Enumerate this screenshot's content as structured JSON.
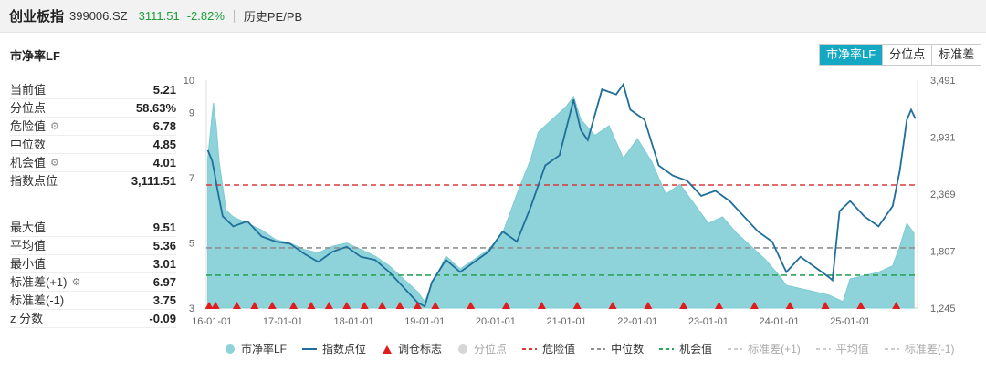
{
  "header": {
    "index_name": "创业板指",
    "index_code": "399006.SZ",
    "price": "3111.51",
    "change": "-2.82%",
    "history_link": "历史PE/PB"
  },
  "subtitle": "市净率LF",
  "tabs": [
    {
      "label": "市净率LF",
      "active": true
    },
    {
      "label": "分位点",
      "active": false
    },
    {
      "label": "标准差",
      "active": false
    }
  ],
  "stats_top": [
    {
      "label": "当前值",
      "value": "5.21",
      "gear": false
    },
    {
      "label": "分位点",
      "value": "58.63%",
      "gear": false
    },
    {
      "label": "危险值",
      "value": "6.78",
      "gear": true
    },
    {
      "label": "中位数",
      "value": "4.85",
      "gear": false
    },
    {
      "label": "机会值",
      "value": "4.01",
      "gear": true
    },
    {
      "label": "指数点位",
      "value": "3,111.51",
      "gear": false
    }
  ],
  "stats_bottom": [
    {
      "label": "最大值",
      "value": "9.51",
      "gear": false
    },
    {
      "label": "平均值",
      "value": "5.36",
      "gear": false
    },
    {
      "label": "最小值",
      "value": "3.01",
      "gear": false
    },
    {
      "label": "标准差(+1)",
      "value": "6.97",
      "gear": true
    },
    {
      "label": "标准差(-1)",
      "value": "3.75",
      "gear": false
    },
    {
      "label": "z 分数",
      "value": "-0.09",
      "gear": false
    }
  ],
  "colors": {
    "area": "#8fd3da",
    "index_line": "#1f6f9a",
    "danger": "#d93a3a",
    "median": "#909090",
    "opportunity": "#2ea35a",
    "marker": "#e01c1c",
    "accent": "#14a8c3",
    "price_down": "#1a9d3a"
  },
  "chart_data": {
    "type": "area",
    "x_ticks": [
      "16-01-01",
      "17-01-01",
      "18-01-01",
      "19-01-01",
      "20-01-01",
      "21-01-01",
      "22-01-01",
      "23-01-01",
      "24-01-01",
      "25-01-01"
    ],
    "y_left_ticks": [
      "10",
      "9",
      "7",
      "5",
      "3"
    ],
    "y_left_ticks_num": [
      10,
      9,
      7,
      5,
      3
    ],
    "y_left_range": [
      3,
      10
    ],
    "y_right_ticks": [
      "3,491",
      "2,931",
      "2,369",
      "1,807",
      "1,245"
    ],
    "y_right_ticks_num": [
      3491,
      2931,
      2369,
      1807,
      1245
    ],
    "y_right_range": [
      1245,
      3491
    ],
    "reference_lines": {
      "danger": 6.78,
      "median": 4.85,
      "opportunity": 4.01
    },
    "pb_series": {
      "name": "市净率LF",
      "t": [
        2015.94,
        2016.0,
        2016.02,
        2016.06,
        2016.1,
        2016.2,
        2016.3,
        2016.5,
        2016.7,
        2016.9,
        2017.1,
        2017.3,
        2017.5,
        2017.7,
        2017.9,
        2018.1,
        2018.3,
        2018.5,
        2018.7,
        2018.9,
        2019.0,
        2019.1,
        2019.3,
        2019.5,
        2019.7,
        2019.9,
        2020.1,
        2020.3,
        2020.5,
        2020.6,
        2020.8,
        2021.0,
        2021.1,
        2021.2,
        2021.4,
        2021.6,
        2021.8,
        2022.0,
        2022.2,
        2022.4,
        2022.6,
        2022.8,
        2023.0,
        2023.2,
        2023.4,
        2023.6,
        2023.8,
        2024.0,
        2024.1,
        2024.3,
        2024.5,
        2024.7,
        2024.9,
        2025.0,
        2025.2,
        2025.4,
        2025.6,
        2025.7,
        2025.8,
        2025.9
      ],
      "values": [
        7.6,
        8.9,
        9.3,
        8.6,
        7.5,
        6.0,
        5.8,
        5.6,
        5.4,
        5.1,
        5.0,
        4.8,
        4.7,
        4.9,
        5.0,
        4.8,
        4.6,
        4.3,
        3.9,
        3.5,
        3.2,
        3.7,
        4.6,
        4.2,
        4.5,
        4.8,
        5.3,
        6.5,
        7.6,
        8.4,
        8.8,
        9.2,
        9.5,
        8.8,
        8.3,
        8.6,
        7.6,
        8.2,
        7.5,
        6.5,
        6.8,
        6.2,
        5.6,
        5.8,
        5.3,
        4.9,
        4.5,
        4.0,
        3.7,
        3.6,
        3.5,
        3.4,
        3.2,
        3.9,
        4.0,
        4.1,
        4.3,
        4.9,
        5.6,
        5.3
      ]
    },
    "index_series": {
      "name": "指数点位",
      "t": [
        2015.94,
        2016.0,
        2016.03,
        2016.08,
        2016.15,
        2016.3,
        2016.5,
        2016.7,
        2016.9,
        2017.1,
        2017.3,
        2017.5,
        2017.7,
        2017.9,
        2018.1,
        2018.3,
        2018.5,
        2018.7,
        2018.9,
        2019.0,
        2019.1,
        2019.3,
        2019.5,
        2019.7,
        2019.9,
        2020.1,
        2020.3,
        2020.5,
        2020.7,
        2020.9,
        2021.1,
        2021.2,
        2021.3,
        2021.5,
        2021.7,
        2021.8,
        2021.9,
        2022.1,
        2022.3,
        2022.5,
        2022.7,
        2022.9,
        2023.1,
        2023.3,
        2023.5,
        2023.7,
        2023.9,
        2024.0,
        2024.1,
        2024.3,
        2024.5,
        2024.7,
        2024.75,
        2024.85,
        2025.0,
        2025.2,
        2025.4,
        2025.6,
        2025.7,
        2025.8,
        2025.86,
        2025.92
      ],
      "values": [
        2800,
        2700,
        2600,
        2400,
        2150,
        2050,
        2100,
        1950,
        1900,
        1880,
        1780,
        1700,
        1800,
        1850,
        1750,
        1720,
        1600,
        1450,
        1300,
        1260,
        1500,
        1720,
        1600,
        1700,
        1800,
        2000,
        1900,
        2250,
        2650,
        2750,
        3300,
        3000,
        2900,
        3400,
        3350,
        3450,
        3200,
        3100,
        2650,
        2550,
        2500,
        2350,
        2400,
        2300,
        2150,
        2000,
        1900,
        1750,
        1600,
        1750,
        1650,
        1550,
        1520,
        2200,
        2300,
        2150,
        2050,
        2250,
        2600,
        3100,
        3200,
        3111
      ]
    },
    "rebalance_markers_t": [
      2015.96,
      2016.05,
      2016.35,
      2016.6,
      2016.85,
      2017.15,
      2017.4,
      2017.65,
      2017.9,
      2018.15,
      2018.4,
      2018.65,
      2018.9,
      2019.15,
      2019.65,
      2020.15,
      2020.65,
      2021.15,
      2021.65,
      2022.15,
      2022.65,
      2023.15,
      2023.65,
      2024.15,
      2024.65,
      2025.15,
      2025.65
    ],
    "legend": [
      {
        "label": "市净率LF",
        "sym": "dot-area",
        "dim": false
      },
      {
        "label": "指数点位",
        "sym": "line-index",
        "dim": false
      },
      {
        "label": "调仓标志",
        "sym": "triangle",
        "dim": false
      },
      {
        "label": "分位点",
        "sym": "dot-gray",
        "dim": true
      },
      {
        "label": "危险值",
        "sym": "dash-red",
        "dim": false
      },
      {
        "label": "中位数",
        "sym": "dash-gray",
        "dim": false
      },
      {
        "label": "机会值",
        "sym": "dash-green",
        "dim": false
      },
      {
        "label": "标准差(+1)",
        "sym": "dash-light",
        "dim": true
      },
      {
        "label": "平均值",
        "sym": "dash-light",
        "dim": true
      },
      {
        "label": "标准差(-1)",
        "sym": "dash-light",
        "dim": true
      }
    ]
  }
}
